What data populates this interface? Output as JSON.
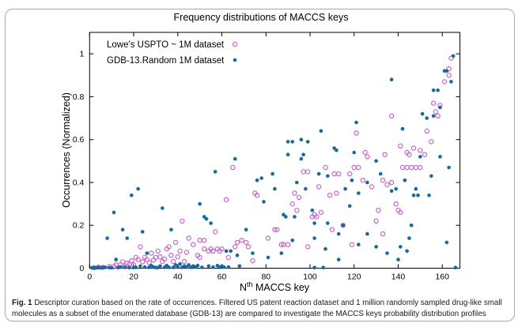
{
  "figure": {
    "title": "Frequency distributions of MACCS keys",
    "caption_label": "Fig. 1",
    "caption_text": " Descriptor curation based on the rate of occurrences. Filtered US patent reaction dataset and 1 million randomly sampled drug-like small molecules as a subset of the enumerated database (GDB-13) are compared to investigate the MACCS keys probability distribution profiles"
  },
  "chart_data": {
    "type": "scatter",
    "title": "Frequency distributions of MACCS keys",
    "xlabel": "Nth MACCS key",
    "xlabel_parts": {
      "base": "N",
      "superscript": "th",
      "rest": " MACCS key"
    },
    "ylabel": "Occurrences (Normalized)",
    "xlim": [
      0,
      168
    ],
    "ylim": [
      0,
      1.1
    ],
    "x_ticks": [
      0,
      20,
      40,
      60,
      80,
      100,
      120,
      140,
      160
    ],
    "y_ticks": [
      0,
      0.2,
      0.4,
      0.6,
      0.8,
      1
    ],
    "grid": false,
    "legend_position": "inside top-left",
    "series": [
      {
        "name": "Lowe's USPTO ~ 1M dataset",
        "marker": "open-circle",
        "color": "#c565c9",
        "points": [
          [
            2,
            0.002
          ],
          [
            4,
            0.005
          ],
          [
            6,
            0.004
          ],
          [
            9,
            0.008
          ],
          [
            11,
            0.007
          ],
          [
            12,
            0.016
          ],
          [
            14,
            0.016
          ],
          [
            15,
            0.03
          ],
          [
            16,
            0.007
          ],
          [
            17,
            0.024
          ],
          [
            18,
            0.02
          ],
          [
            19,
            0.035
          ],
          [
            20,
            0.016
          ],
          [
            21,
            0.05
          ],
          [
            22,
            0.04
          ],
          [
            23,
            0.1
          ],
          [
            24,
            0.03
          ],
          [
            25,
            0.05
          ],
          [
            26,
            0.04
          ],
          [
            27,
            0.026
          ],
          [
            28,
            0.07
          ],
          [
            29,
            0.038
          ],
          [
            30,
            0.05
          ],
          [
            31,
            0.08
          ],
          [
            32,
            0.053
          ],
          [
            33,
            0.031
          ],
          [
            34,
            0.043
          ],
          [
            35,
            0.09
          ],
          [
            36,
            0.1
          ],
          [
            37,
            0.06
          ],
          [
            38,
            0.031
          ],
          [
            39,
            0.12
          ],
          [
            40,
            0.053
          ],
          [
            41,
            0.08
          ],
          [
            42,
            0.22
          ],
          [
            43,
            0.031
          ],
          [
            44,
            0.074
          ],
          [
            45,
            0.14
          ],
          [
            47,
            0.11
          ],
          [
            49,
            0.06
          ],
          [
            50,
            0.05
          ],
          [
            50,
            0.13
          ],
          [
            52,
            0.13
          ],
          [
            52,
            0.09
          ],
          [
            54,
            0.08
          ],
          [
            55,
            0.09
          ],
          [
            56,
            0.08
          ],
          [
            57,
            0.17
          ],
          [
            58,
            0.09
          ],
          [
            59,
            0.08
          ],
          [
            60,
            0.09
          ],
          [
            62,
            0.32
          ],
          [
            63,
            0.05
          ],
          [
            65,
            0.47
          ],
          [
            66,
            0.1
          ],
          [
            67,
            0.12
          ],
          [
            69,
            0.13
          ],
          [
            71,
            0.12
          ],
          [
            72,
            0.1
          ],
          [
            74,
            0.035
          ],
          [
            75,
            0.35
          ],
          [
            76,
            0.34
          ],
          [
            81,
            0.14
          ],
          [
            84,
            0.18
          ],
          [
            85,
            0.18
          ],
          [
            87,
            0.11
          ],
          [
            88,
            0.11
          ],
          [
            90,
            0.11
          ],
          [
            92,
            0.3
          ],
          [
            93,
            0.35
          ],
          [
            94,
            0.27
          ],
          [
            95,
            0.33
          ],
          [
            97,
            0.45
          ],
          [
            99,
            0.45
          ],
          [
            99,
            0.1
          ],
          [
            101,
            0.24
          ],
          [
            102,
            0.25
          ],
          [
            103,
            0.24
          ],
          [
            104,
            0.38
          ],
          [
            105,
            0.26
          ],
          [
            107,
            0.47
          ],
          [
            109,
            0.34
          ],
          [
            110,
            0.18
          ],
          [
            111,
            0.44
          ],
          [
            112,
            0.35
          ],
          [
            113,
            0.44
          ],
          [
            115,
            0.2
          ],
          [
            118,
            0.44
          ],
          [
            119,
            0.11
          ],
          [
            120,
            0.47
          ],
          [
            121,
            0.63
          ],
          [
            122,
            0.47
          ],
          [
            124,
            0.41
          ],
          [
            125,
            0.54
          ],
          [
            126,
            0.52
          ],
          [
            128,
            0.38
          ],
          [
            130,
            0.22
          ],
          [
            131,
            0.27
          ],
          [
            133,
            0.16
          ],
          [
            133,
            0.41
          ],
          [
            134,
            0.53
          ],
          [
            135,
            0.39
          ],
          [
            137,
            0.4
          ],
          [
            137,
            0.71
          ],
          [
            139,
            0.3
          ],
          [
            140,
            0.27
          ],
          [
            141,
            0.57
          ],
          [
            141,
            0.26
          ],
          [
            142,
            0.47
          ],
          [
            144,
            0.54
          ],
          [
            144,
            0.47
          ],
          [
            145,
            0.53
          ],
          [
            146,
            0.47
          ],
          [
            147,
            0.56
          ],
          [
            148,
            0.47
          ],
          [
            150,
            0.55
          ],
          [
            150,
            0.47
          ],
          [
            152,
            0.53
          ],
          [
            153,
            0.64
          ],
          [
            155,
            0.59
          ],
          [
            156,
            0.77
          ],
          [
            157,
            0.73
          ],
          [
            158,
            0.71
          ],
          [
            159,
            0.76
          ],
          [
            161,
            0.87
          ],
          [
            163,
            0.9
          ],
          [
            163,
            0.93
          ],
          [
            164,
            0.98
          ]
        ]
      },
      {
        "name": "GDB-13.Random 1M dataset",
        "marker": "filled-circle",
        "color": "#17689e",
        "points": [
          [
            1,
            0.002
          ],
          [
            2,
            0.003
          ],
          [
            3,
            0.002
          ],
          [
            4,
            0.004
          ],
          [
            5,
            0.002
          ],
          [
            6,
            0.003
          ],
          [
            7,
            0.004
          ],
          [
            8,
            0.14
          ],
          [
            9,
            0.003
          ],
          [
            10,
            0.002
          ],
          [
            11,
            0.26
          ],
          [
            12,
            0.04
          ],
          [
            13,
            0.003
          ],
          [
            14,
            0.006
          ],
          [
            15,
            0.18
          ],
          [
            16,
            0.004
          ],
          [
            17,
            0.14
          ],
          [
            18,
            0.003
          ],
          [
            19,
            0.34
          ],
          [
            20,
            0.003
          ],
          [
            21,
            0.004
          ],
          [
            22,
            0.37
          ],
          [
            23,
            0.01
          ],
          [
            24,
            0.17
          ],
          [
            25,
            0.005
          ],
          [
            26,
            0.07
          ],
          [
            27,
            0.004
          ],
          [
            28,
            0.012
          ],
          [
            29,
            0.005
          ],
          [
            30,
            0.003
          ],
          [
            31,
            0.003
          ],
          [
            32,
            0.01
          ],
          [
            33,
            0.28
          ],
          [
            34,
            0.004
          ],
          [
            35,
            0.012
          ],
          [
            36,
            0.004
          ],
          [
            37,
            0.18
          ],
          [
            38,
            0.004
          ],
          [
            39,
            0.015
          ],
          [
            40,
            0.005
          ],
          [
            41,
            0.02
          ],
          [
            42,
            0.004
          ],
          [
            43,
            0.01
          ],
          [
            44,
            0.005
          ],
          [
            45,
            0.015
          ],
          [
            46,
            0.004
          ],
          [
            47,
            0.01
          ],
          [
            48,
            0.005
          ],
          [
            49,
            0.012
          ],
          [
            50,
            0.3
          ],
          [
            51,
            0.004
          ],
          [
            52,
            0.24
          ],
          [
            53,
            0.23
          ],
          [
            54,
            0.01
          ],
          [
            55,
            0.21
          ],
          [
            56,
            0.005
          ],
          [
            57,
            0.45
          ],
          [
            58,
            0.012
          ],
          [
            59,
            0.004
          ],
          [
            60,
            0.01
          ],
          [
            61,
            0.005
          ],
          [
            62,
            0.08
          ],
          [
            63,
            0.005
          ],
          [
            64,
            0.08
          ],
          [
            66,
            0.51
          ],
          [
            67,
            0.06
          ],
          [
            68,
            0.01
          ],
          [
            71,
            0.18
          ],
          [
            74,
            0.07
          ],
          [
            76,
            0.41
          ],
          [
            78,
            0.42
          ],
          [
            79,
            0.31
          ],
          [
            81,
            0.05
          ],
          [
            83,
            0.44
          ],
          [
            84,
            0.37
          ],
          [
            87,
            0.07
          ],
          [
            88,
            0.25
          ],
          [
            89,
            0.24
          ],
          [
            90,
            0.59
          ],
          [
            90,
            0.53
          ],
          [
            92,
            0.59
          ],
          [
            92,
            0.13
          ],
          [
            93,
            0.24
          ],
          [
            94,
            0.4
          ],
          [
            96,
            0.6
          ],
          [
            96,
            0.51
          ],
          [
            97,
            0.53
          ],
          [
            98,
            0.37
          ],
          [
            99,
            0.59
          ],
          [
            101,
            0.27
          ],
          [
            102,
            0.21
          ],
          [
            102,
            0.14
          ],
          [
            102,
            0.003
          ],
          [
            104,
            0.44
          ],
          [
            105,
            0.64
          ],
          [
            106,
            0.003
          ],
          [
            107,
            0.09
          ],
          [
            108,
            0.43
          ],
          [
            108,
            0.21
          ],
          [
            111,
            0.56
          ],
          [
            112,
            0.55
          ],
          [
            113,
            0.16
          ],
          [
            113,
            0.04
          ],
          [
            115,
            0.2
          ],
          [
            116,
            0.37
          ],
          [
            118,
            0.29
          ],
          [
            119,
            0.41
          ],
          [
            120,
            0.54
          ],
          [
            121,
            0.68
          ],
          [
            122,
            0.35
          ],
          [
            122,
            0.11
          ],
          [
            126,
            0.4
          ],
          [
            126,
            0.16
          ],
          [
            130,
            0.5
          ],
          [
            130,
            0.1
          ],
          [
            132,
            0.44
          ],
          [
            135,
            0.07
          ],
          [
            137,
            0.88
          ],
          [
            137,
            0.36
          ],
          [
            139,
            0.37
          ],
          [
            140,
            0.04
          ],
          [
            141,
            0.1
          ],
          [
            142,
            0.65
          ],
          [
            143,
            0.41
          ],
          [
            144,
            0.08
          ],
          [
            145,
            0.14
          ],
          [
            146,
            0.2
          ],
          [
            147,
            0.34
          ],
          [
            148,
            0.37
          ],
          [
            149,
            0.34
          ],
          [
            150,
            0.52
          ],
          [
            151,
            0.72
          ],
          [
            153,
            0.7
          ],
          [
            154,
            0.34
          ],
          [
            155,
            0.43
          ],
          [
            156,
            0.71
          ],
          [
            156,
            0.83
          ],
          [
            158,
            0.83
          ],
          [
            159,
            0.75
          ],
          [
            159,
            0.52
          ],
          [
            161,
            0.92
          ],
          [
            162,
            0.92
          ],
          [
            162,
            0.12
          ],
          [
            163,
            0.47
          ],
          [
            164,
            0.87
          ],
          [
            165,
            0.99
          ],
          [
            166,
            0.003
          ]
        ]
      }
    ]
  }
}
